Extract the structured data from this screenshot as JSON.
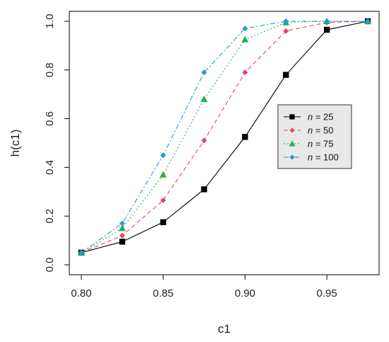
{
  "chart_data": {
    "type": "line",
    "title": "",
    "xlabel": "c1",
    "ylabel": "h(c1)",
    "xlim": [
      0.8,
      0.975
    ],
    "ylim": [
      0.0,
      1.0
    ],
    "x_ticks": [
      "0.80",
      "0.85",
      "0.90",
      "0.95"
    ],
    "x_tick_values": [
      0.8,
      0.85,
      0.9,
      0.95
    ],
    "y_ticks": [
      "0.0",
      "0.2",
      "0.4",
      "0.6",
      "0.8",
      "1.0"
    ],
    "y_tick_values": [
      0.0,
      0.2,
      0.4,
      0.6,
      0.8,
      1.0
    ],
    "grid": false,
    "legend_position": "right",
    "x": [
      0.8,
      0.825,
      0.85,
      0.875,
      0.9,
      0.925,
      0.95,
      0.975
    ],
    "series": [
      {
        "name": "n = 25",
        "legend_var": "n",
        "legend_val": " = 25",
        "color": "#000000",
        "dash": "",
        "marker": "square",
        "values": [
          0.05,
          0.095,
          0.175,
          0.31,
          0.525,
          0.78,
          0.965,
          1.0
        ]
      },
      {
        "name": "n = 50",
        "legend_var": "n",
        "legend_val": " = 50",
        "color": "#e2476b",
        "dash": "6,4",
        "marker": "diamond",
        "values": [
          0.05,
          0.12,
          0.265,
          0.51,
          0.79,
          0.96,
          0.995,
          1.0
        ]
      },
      {
        "name": "n = 75",
        "legend_var": "n",
        "legend_val": " = 75",
        "color": "#22b14c",
        "dash": "2,3",
        "marker": "triangle",
        "values": [
          0.05,
          0.15,
          0.37,
          0.68,
          0.925,
          0.995,
          1.0,
          1.0
        ]
      },
      {
        "name": "n = 100",
        "legend_var": "n",
        "legend_val": " = 100",
        "color": "#1f9bd7",
        "dash": "7,3,2,3",
        "marker": "diamond",
        "values": [
          0.05,
          0.17,
          0.45,
          0.79,
          0.97,
          1.0,
          1.0,
          1.0
        ]
      }
    ]
  }
}
